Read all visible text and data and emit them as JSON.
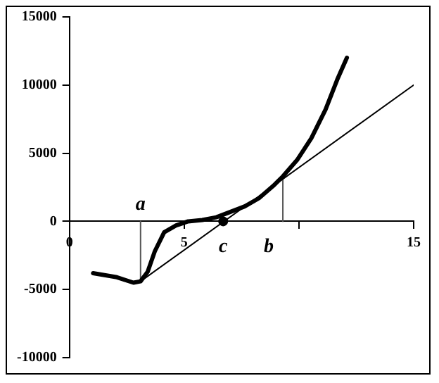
{
  "chart_data": {
    "type": "line",
    "xlim": [
      0,
      15
    ],
    "xticks": [
      0,
      5,
      {
        "value": 10,
        "label": null
      },
      15
    ],
    "ylim": [
      -10000,
      15000
    ],
    "yticks": [
      -10000,
      -5000,
      0,
      5000,
      10000,
      15000
    ],
    "grid": false,
    "legend": false,
    "series": [
      {
        "color": "#000000",
        "marker": "none",
        "x": [
          1.03,
          2.07,
          2.79,
          3.1,
          3.41,
          3.72,
          4.13,
          4.65,
          5.17,
          5.79,
          6.4,
          7.02,
          7.64,
          8.26,
          8.88,
          9.3,
          9.92,
          10.54,
          11.16,
          11.67,
          12.09
        ],
        "values": [
          -3800,
          -4100,
          -4500,
          -4400,
          -3700,
          -2200,
          -800,
          -300,
          0,
          100,
          300,
          700,
          1100,
          1700,
          2600,
          3300,
          4500,
          6100,
          8200,
          10400,
          12000
        ]
      },
      {
        "color": "#000000",
        "marker": "none",
        "x": [
          3.1,
          15
        ],
        "values": [
          -4400,
          10000
        ]
      },
      {
        "color": "#555555",
        "marker": "none",
        "x": [
          3.1,
          3.1
        ],
        "values": [
          0,
          -4400
        ]
      },
      {
        "color": "#555555",
        "marker": "none",
        "x": [
          9.3,
          9.3
        ],
        "values": [
          0,
          3300
        ]
      },
      {
        "type": "scatter",
        "color": "#000000",
        "marker": "circle",
        "x": [
          6.7
        ],
        "values": [
          0
        ]
      }
    ],
    "annotations": [
      {
        "text": "a",
        "x": 3.1,
        "y": 0
      },
      {
        "text": "c",
        "x": 6.7,
        "y": 0
      },
      {
        "text": "b",
        "x": 9.3,
        "y": 0
      }
    ]
  }
}
